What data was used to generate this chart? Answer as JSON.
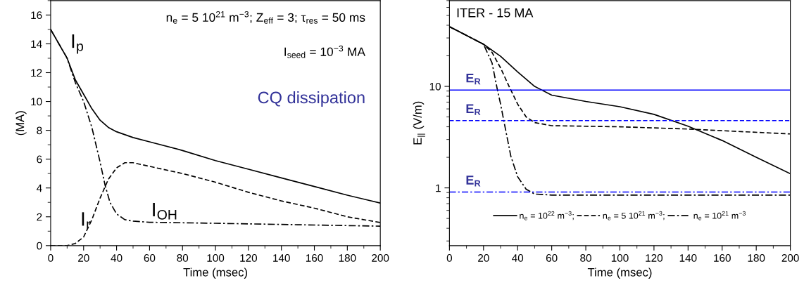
{
  "chart_data": [
    {
      "type": "line",
      "xlabel": "Time (msec)",
      "ylabel": "(MA)",
      "xlim": [
        0,
        200
      ],
      "xticks": [
        0,
        20,
        40,
        60,
        80,
        100,
        120,
        140,
        160,
        180,
        200
      ],
      "ylim": [
        0,
        17
      ],
      "yticks": [
        0,
        2,
        4,
        6,
        8,
        10,
        12,
        14,
        16
      ],
      "grid": false,
      "legend": false,
      "series": [
        {
          "name": "I$_{p}$",
          "color": "#000000",
          "line_style": "solid",
          "x": [
            0,
            10,
            15,
            20,
            25,
            30,
            35,
            40,
            50,
            60,
            80,
            100,
            120,
            140,
            160,
            180,
            200
          ],
          "values": [
            15,
            13,
            11.5,
            10.5,
            9.5,
            8.7,
            8.2,
            7.9,
            7.5,
            7.2,
            6.6,
            5.9,
            5.3,
            4.7,
            4.1,
            3.5,
            2.95
          ]
        },
        {
          "name": "I$_{OH}$",
          "color": "#000000",
          "line_style": "dashdot",
          "x": [
            0,
            10,
            15,
            20,
            25,
            30,
            33,
            36,
            40,
            45,
            50,
            60,
            100,
            150,
            200
          ],
          "values": [
            15,
            13,
            11.3,
            10,
            8.2,
            5.8,
            4.2,
            3,
            2.2,
            1.8,
            1.7,
            1.62,
            1.55,
            1.45,
            1.35
          ]
        },
        {
          "name": "I$_{r}$",
          "color": "#000000",
          "line_style": "dashed",
          "x": [
            0,
            10,
            15,
            20,
            25,
            30,
            35,
            40,
            45,
            50,
            60,
            80,
            100,
            120,
            140,
            160,
            180,
            200
          ],
          "values": [
            0,
            0,
            0.15,
            0.6,
            1.8,
            3.3,
            4.6,
            5.4,
            5.75,
            5.75,
            5.5,
            5,
            4.4,
            3.7,
            3.1,
            2.6,
            2.0,
            1.6
          ]
        }
      ],
      "annotations": [
        "n$_{e}$ = 5 10$^{21}$ m$^{−3}$; Z$_{eff}$ = 3; τ$_{res}$ = 50 ms",
        "I$_{seed}$ = 10$^{−3}$ MA",
        "CQ dissipation"
      ]
    },
    {
      "type": "line",
      "xlabel": "Time (msec)",
      "ylabel": "E$_{||}$ (V/m)",
      "log": "y",
      "xlim": [
        0,
        200
      ],
      "xticks": [
        0,
        20,
        40,
        60,
        80,
        100,
        120,
        140,
        160,
        180,
        200
      ],
      "ylim": [
        0.27,
        70
      ],
      "yticks": [
        1,
        10
      ],
      "grid": false,
      "legend": "bottom",
      "series": [
        {
          "name": "n$_{e}$ = 10$^{22}$ m$^{−3}$;",
          "color": "#000000",
          "line_style": "solid",
          "x": [
            0,
            20,
            30,
            40,
            50,
            60,
            80,
            100,
            120,
            140,
            160,
            180,
            200
          ],
          "values": [
            38.8,
            26,
            19.8,
            13.9,
            10,
            8.2,
            7.1,
            6.3,
            5.3,
            4.05,
            2.93,
            2.0,
            1.38
          ]
        },
        {
          "name": "n$_{e}$ = 5 10$^{21}$ m$^{−3}$;",
          "color": "#000000",
          "line_style": "dashed",
          "x": [
            0,
            20,
            25,
            30,
            35,
            40,
            45,
            50,
            60,
            100,
            140,
            200
          ],
          "values": [
            38.8,
            26,
            21.6,
            15.2,
            10,
            6.7,
            5.0,
            4.4,
            4.1,
            4.0,
            3.8,
            3.4
          ]
        },
        {
          "name": "n$_{e}$ = 10$^{21}$ m$^{−3}$",
          "color": "#000000",
          "line_style": "dashdot",
          "x": [
            0,
            20,
            25,
            28,
            30,
            33,
            36,
            40,
            45,
            50,
            60,
            100,
            200
          ],
          "values": [
            38.8,
            26,
            17,
            9.5,
            6.7,
            3.7,
            2.06,
            1.29,
            0.97,
            0.87,
            0.85,
            0.85,
            0.85
          ]
        }
      ],
      "ref_lines": [
        {
          "axis": "y",
          "value": 9.2,
          "label": "E$_{R}$",
          "color": "#0000ff",
          "line_style": "solid"
        },
        {
          "axis": "y",
          "value": 4.6,
          "label": "E$_{R}$",
          "color": "#0000ff",
          "line_style": "dashed"
        },
        {
          "axis": "y",
          "value": 0.91,
          "label": "E$_{R}$",
          "color": "#0000ff",
          "line_style": "dashdot"
        }
      ],
      "annotations": [
        "ITER - 15 MA"
      ]
    }
  ]
}
